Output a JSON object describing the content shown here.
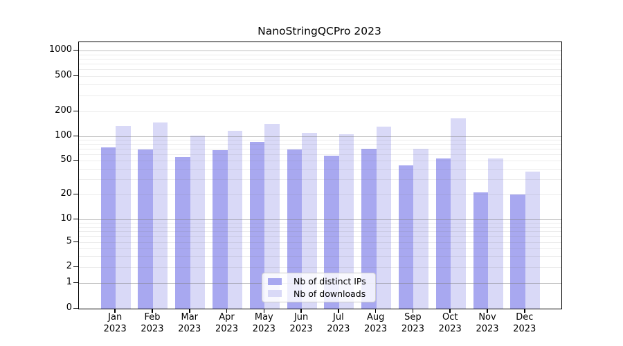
{
  "title": "NanoStringQCPro 2023",
  "colors": {
    "distinct_ips": "#a8a8f0",
    "downloads": "#d9d9f7",
    "major_grid": "#b9b9b9",
    "minor_grid": "#ebebeb",
    "axis_line": "#000000",
    "text": "#000000",
    "legend_border": "#cccccc"
  },
  "y_axis": {
    "tick_labels": [
      "1000",
      "500",
      "200",
      "100",
      "50",
      "20",
      "10",
      "5",
      "2",
      "1",
      "0"
    ]
  },
  "x_axis": {
    "months": [
      "Jan",
      "Feb",
      "Mar",
      "Apr",
      "May",
      "Jun",
      "Jul",
      "Aug",
      "Sep",
      "Oct",
      "Nov",
      "Dec"
    ],
    "year_line": "2023"
  },
  "legend": {
    "items": [
      {
        "label": "Nb of distinct IPs",
        "color": "#a8a8f0"
      },
      {
        "label": "Nb of downloads",
        "color": "#d9d9f7"
      }
    ]
  },
  "chart_data": {
    "type": "bar",
    "title": "NanoStringQCPro 2023",
    "categories": [
      "Jan 2023",
      "Feb 2023",
      "Mar 2023",
      "Apr 2023",
      "May 2023",
      "Jun 2023",
      "Jul 2023",
      "Aug 2023",
      "Sep 2023",
      "Oct 2023",
      "Nov 2023",
      "Dec 2023"
    ],
    "series": [
      {
        "name": "Nb of distinct IPs",
        "values": [
          73,
          69,
          55,
          67,
          85,
          68,
          57,
          70,
          44,
          53,
          21,
          20
        ]
      },
      {
        "name": "Nb of downloads",
        "values": [
          134,
          146,
          101,
          117,
          142,
          110,
          105,
          130,
          70,
          165,
          53,
          37
        ]
      }
    ],
    "yscale": "log above 1, linear between 0 and 1",
    "y_ticks": [
      0,
      1,
      2,
      5,
      10,
      20,
      50,
      100,
      200,
      500,
      1000
    ],
    "ylim": [
      0,
      1300
    ],
    "grid": true,
    "minor_grid": true,
    "legend_position": "lower center inside plot"
  }
}
